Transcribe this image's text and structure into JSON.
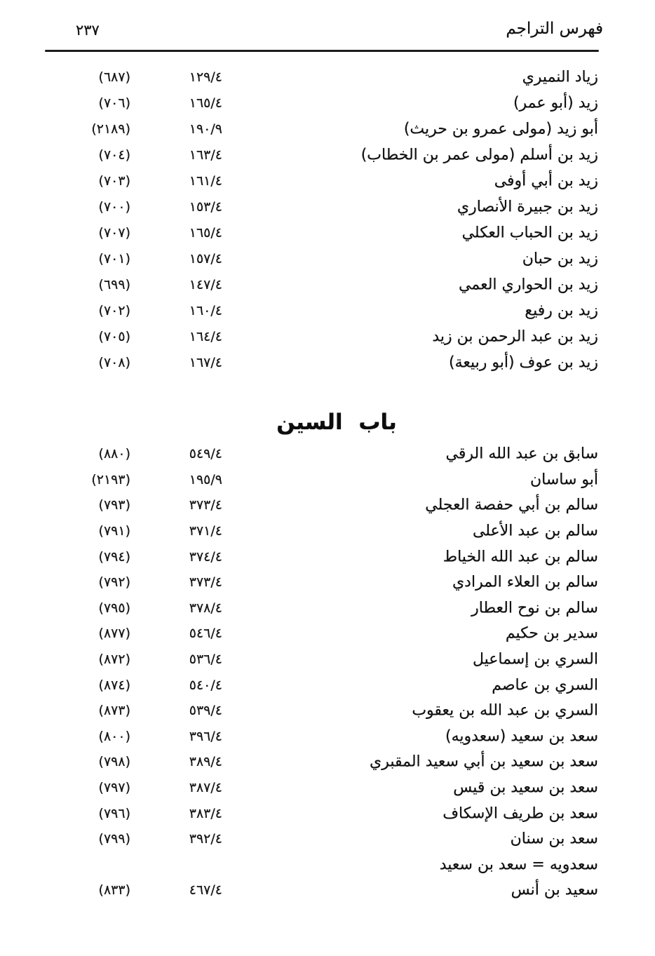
{
  "header": {
    "page_number": "٢٣٧",
    "title": "فهرس التراجم"
  },
  "index": {
    "section_zay": {
      "entries": [
        {
          "name": "زياد النميري",
          "ref": "١٢٩/٤",
          "num": "(٦٨٧)"
        },
        {
          "name": "زيد (أبو عمر)",
          "ref": "١٦٥/٤",
          "num": "(٧٠٦)"
        },
        {
          "name": "أبو زيد (مولى عمرو بن حريث)",
          "ref": "١٩٠/٩",
          "num": "(٢١٨٩)"
        },
        {
          "name": "زيد بن أسلم (مولى عمر بن الخطاب)",
          "ref": "١٦٣/٤",
          "num": "(٧٠٤)"
        },
        {
          "name": "زيد بن أبي أوفى",
          "ref": "١٦١/٤",
          "num": "(٧٠٣)"
        },
        {
          "name": "زيد بن جبيرة الأنصاري",
          "ref": "١٥٣/٤",
          "num": "(٧٠٠)"
        },
        {
          "name": "زيد بن الحباب العكلي",
          "ref": "١٦٥/٤",
          "num": "(٧٠٧)"
        },
        {
          "name": "زيد بن حبان",
          "ref": "١٥٧/٤",
          "num": "(٧٠١)"
        },
        {
          "name": "زيد بن الحواري العمي",
          "ref": "١٤٧/٤",
          "num": "(٦٩٩)"
        },
        {
          "name": "زيد بن رفيع",
          "ref": "١٦٠/٤",
          "num": "(٧٠٢)"
        },
        {
          "name": "زيد بن عبد الرحمن بن زيد",
          "ref": "١٦٤/٤",
          "num": "(٧٠٥)"
        },
        {
          "name": "زيد بن عوف (أبو ربيعة)",
          "ref": "١٦٧/٤",
          "num": "(٧٠٨)"
        }
      ]
    },
    "heading_seen": "باب السين",
    "section_seen": {
      "entries": [
        {
          "name": "سابق بن عبد الله الرقي",
          "ref": "٥٤٩/٤",
          "num": "(٨٨٠)"
        },
        {
          "name": "أبو ساسان",
          "ref": "١٩٥/٩",
          "num": "(٢١٩٣)"
        },
        {
          "name": "سالم بن أبي حفصة العجلي",
          "ref": "٣٧٣/٤",
          "num": "(٧٩٣)"
        },
        {
          "name": "سالم بن عبد الأعلى",
          "ref": "٣٧١/٤",
          "num": "(٧٩١)"
        },
        {
          "name": "سالم بن عبد الله الخياط",
          "ref": "٣٧٤/٤",
          "num": "(٧٩٤)"
        },
        {
          "name": "سالم بن العلاء المرادي",
          "ref": "٣٧٣/٤",
          "num": "(٧٩٢)"
        },
        {
          "name": "سالم بن نوح العطار",
          "ref": "٣٧٨/٤",
          "num": "(٧٩٥)"
        },
        {
          "name": "سدير بن حكيم",
          "ref": "٥٤٦/٤",
          "num": "(٨٧٧)"
        },
        {
          "name": "السري بن إسماعيل",
          "ref": "٥٣٦/٤",
          "num": "(٨٧٢)"
        },
        {
          "name": "السري بن عاصم",
          "ref": "٥٤٠/٤",
          "num": "(٨٧٤)"
        },
        {
          "name": "السري بن عبد الله بن يعقوب",
          "ref": "٥٣٩/٤",
          "num": "(٨٧٣)"
        },
        {
          "name": "سعد بن سعيد (سعدويه)",
          "ref": "٣٩٦/٤",
          "num": "(٨٠٠)"
        },
        {
          "name": "سعد بن سعيد بن أبي سعيد المقبري",
          "ref": "٣٨٩/٤",
          "num": "(٧٩٨)"
        },
        {
          "name": "سعد بن سعيد بن قيس",
          "ref": "٣٨٧/٤",
          "num": "(٧٩٧)"
        },
        {
          "name": "سعد بن طريف الإسكاف",
          "ref": "٣٨٣/٤",
          "num": "(٧٩٦)"
        },
        {
          "name": "سعد بن سنان",
          "ref": "٣٩٢/٤",
          "num": "(٧٩٩)"
        },
        {
          "name": "سعدويه = سعد بن سعيد",
          "ref": "",
          "num": ""
        },
        {
          "name": "سعيد بن أنس",
          "ref": "٤٦٧/٤",
          "num": "(٨٣٣)"
        }
      ]
    }
  }
}
